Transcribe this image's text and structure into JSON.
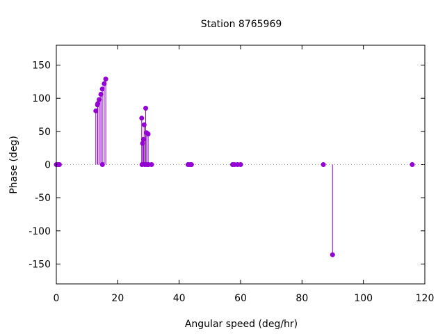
{
  "chart_data": {
    "type": "scatter",
    "style": "impulses-with-points",
    "title": "Station 8765969",
    "xlabel": "Angular speed (deg/hr)",
    "ylabel": "Phase (deg)",
    "xlim": [
      0,
      120
    ],
    "ylim": [
      -180,
      180
    ],
    "xticks": [
      "0",
      "20",
      "40",
      "60",
      "80",
      "100",
      "120"
    ],
    "yticks": [
      "-150",
      "-100",
      "-50",
      "0",
      "50",
      "100",
      "150"
    ],
    "xtick_values": [
      0,
      20,
      40,
      60,
      80,
      100,
      120
    ],
    "ytick_values": [
      -150,
      -100,
      -50,
      0,
      50,
      100,
      150
    ],
    "zero_line": "dotted",
    "grid": false,
    "series_color": "#9400d3",
    "points": [
      {
        "x": 0.0,
        "y": 0
      },
      {
        "x": 0.5,
        "y": 0
      },
      {
        "x": 1.0,
        "y": 0
      },
      {
        "x": 12.85,
        "y": 81
      },
      {
        "x": 13.4,
        "y": 90
      },
      {
        "x": 13.5,
        "y": 92
      },
      {
        "x": 13.95,
        "y": 98
      },
      {
        "x": 14.5,
        "y": 106
      },
      {
        "x": 14.96,
        "y": 114
      },
      {
        "x": 15.0,
        "y": 0
      },
      {
        "x": 15.6,
        "y": 122
      },
      {
        "x": 16.1,
        "y": 129
      },
      {
        "x": 27.8,
        "y": 70
      },
      {
        "x": 27.9,
        "y": 0
      },
      {
        "x": 28.1,
        "y": 32
      },
      {
        "x": 28.4,
        "y": 38
      },
      {
        "x": 28.6,
        "y": 60
      },
      {
        "x": 28.8,
        "y": 0
      },
      {
        "x": 29.1,
        "y": 85
      },
      {
        "x": 29.4,
        "y": 48
      },
      {
        "x": 29.5,
        "y": 0
      },
      {
        "x": 29.9,
        "y": 46
      },
      {
        "x": 30.0,
        "y": 0
      },
      {
        "x": 31.0,
        "y": 0
      },
      {
        "x": 42.9,
        "y": 0
      },
      {
        "x": 43.5,
        "y": 0
      },
      {
        "x": 44.0,
        "y": 0
      },
      {
        "x": 57.4,
        "y": 0
      },
      {
        "x": 58.0,
        "y": 0
      },
      {
        "x": 59.0,
        "y": 0
      },
      {
        "x": 60.0,
        "y": 0
      },
      {
        "x": 86.95,
        "y": 0
      },
      {
        "x": 89.95,
        "y": -136
      },
      {
        "x": 115.9,
        "y": 0
      }
    ]
  }
}
